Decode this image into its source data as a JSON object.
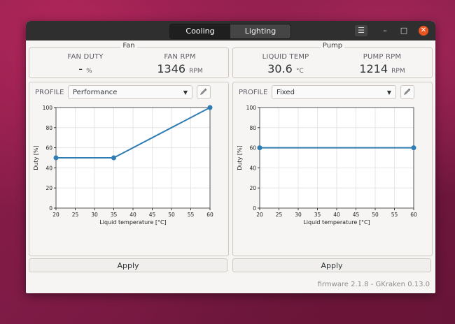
{
  "window": {
    "tabs": [
      {
        "label": "Cooling",
        "active": true
      },
      {
        "label": "Lighting",
        "active": false
      }
    ],
    "controls": {
      "menu_icon": "hamburger-icon",
      "minimize_icon": "minimize-icon",
      "maximize_icon": "maximize-icon",
      "close_icon": "close-icon"
    }
  },
  "fan": {
    "title": "Fan",
    "duty_label": "FAN DUTY",
    "duty_value": "-",
    "duty_unit": "%",
    "rpm_label": "FAN RPM",
    "rpm_value": "1346",
    "rpm_unit": "RPM",
    "profile_label": "PROFILE",
    "profile_selected": "Performance",
    "apply_label": "Apply"
  },
  "pump": {
    "title": "Pump",
    "temp_label": "LIQUID TEMP",
    "temp_value": "30.6",
    "temp_unit": "°C",
    "rpm_label": "PUMP RPM",
    "rpm_value": "1214",
    "rpm_unit": "RPM",
    "profile_label": "PROFILE",
    "profile_selected": "Fixed",
    "apply_label": "Apply"
  },
  "footer": {
    "text": "firmware 2.1.8 - GKraken 0.13.0"
  },
  "colors": {
    "line": "#2f7db3",
    "grid": "#e6e6e6",
    "accent_close": "#e95420"
  },
  "chart_data": [
    {
      "type": "line",
      "x": [
        20,
        35,
        60
      ],
      "y": [
        50,
        50,
        100
      ],
      "xlabel": "Liquid temperature [°C]",
      "ylabel": "Duty [%]",
      "xlim": [
        20,
        60
      ],
      "ylim": [
        0,
        100
      ],
      "xticks": [
        20,
        25,
        30,
        35,
        40,
        45,
        50,
        55,
        60
      ],
      "yticks": [
        0,
        20,
        40,
        60,
        80,
        100
      ],
      "grid": true
    },
    {
      "type": "line",
      "x": [
        20,
        60
      ],
      "y": [
        60,
        60
      ],
      "xlabel": "Liquid temperature [°C]",
      "ylabel": "Duty [%]",
      "xlim": [
        20,
        60
      ],
      "ylim": [
        0,
        100
      ],
      "xticks": [
        20,
        25,
        30,
        35,
        40,
        45,
        50,
        55,
        60
      ],
      "yticks": [
        0,
        20,
        40,
        60,
        80,
        100
      ],
      "grid": true
    }
  ]
}
